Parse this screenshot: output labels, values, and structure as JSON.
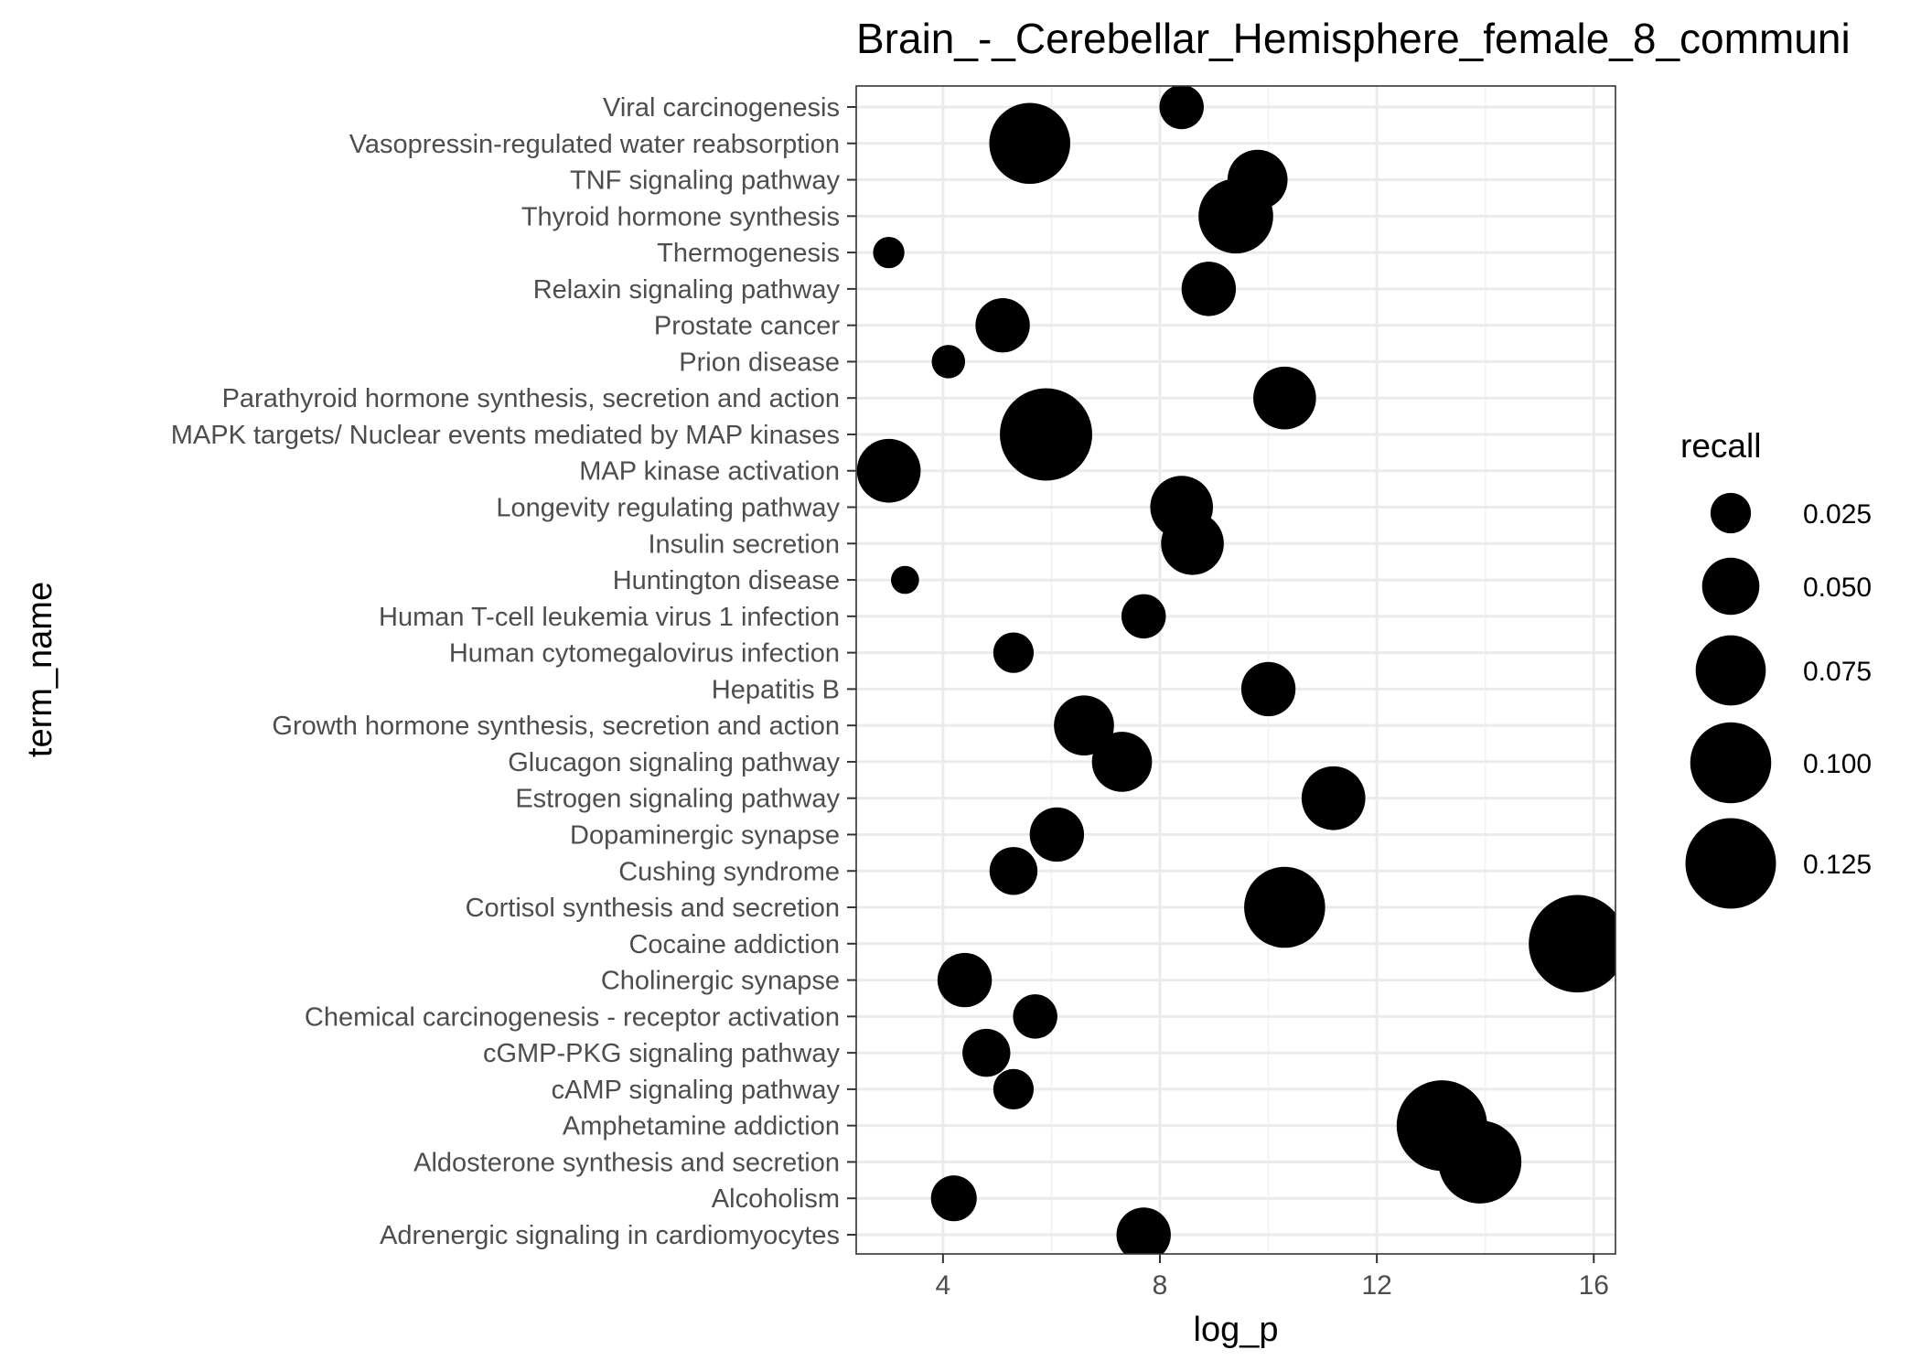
{
  "chart_data": {
    "type": "scatter",
    "title": "Brain_-_Cerebellar_Hemisphere_female_8_communi",
    "xlabel": "log_p",
    "ylabel": "term_name",
    "xlim": [
      2.4,
      16.4
    ],
    "xticks": [
      4,
      8,
      12,
      16
    ],
    "xtick_labels": [
      "4",
      "8",
      "12",
      "16"
    ],
    "grid": true,
    "legend_position": "right",
    "legend": {
      "title": "recall",
      "entries": [
        {
          "label": "0.025",
          "value": 0.025
        },
        {
          "label": "0.050",
          "value": 0.05
        },
        {
          "label": "0.075",
          "value": 0.075
        },
        {
          "label": "0.100",
          "value": 0.1
        },
        {
          "label": "0.125",
          "value": 0.125
        }
      ]
    },
    "points": [
      {
        "term": "Viral carcinogenesis",
        "log_p": 8.4,
        "recall": 0.03
      },
      {
        "term": "Vasopressin-regulated water reabsorption",
        "log_p": 5.6,
        "recall": 0.1
      },
      {
        "term": "TNF signaling pathway",
        "log_p": 9.8,
        "recall": 0.055
      },
      {
        "term": "Thyroid hormone synthesis",
        "log_p": 9.4,
        "recall": 0.085
      },
      {
        "term": "Thermogenesis",
        "log_p": 3.0,
        "recall": 0.015
      },
      {
        "term": "Relaxin signaling pathway",
        "log_p": 8.9,
        "recall": 0.045
      },
      {
        "term": "Prostate cancer",
        "log_p": 5.1,
        "recall": 0.045
      },
      {
        "term": "Prion disease",
        "log_p": 4.1,
        "recall": 0.017
      },
      {
        "term": "Parathyroid hormone synthesis, secretion and action",
        "log_p": 10.3,
        "recall": 0.06
      },
      {
        "term": "MAPK targets/ Nuclear events mediated by MAP kinases",
        "log_p": 5.9,
        "recall": 0.13
      },
      {
        "term": "MAP kinase activation",
        "log_p": 3.0,
        "recall": 0.062
      },
      {
        "term": "Longevity regulating pathway",
        "log_p": 8.4,
        "recall": 0.06
      },
      {
        "term": "Insulin secretion",
        "log_p": 8.6,
        "recall": 0.06
      },
      {
        "term": "Huntington disease",
        "log_p": 3.3,
        "recall": 0.012
      },
      {
        "term": "Human T-cell leukemia virus 1 infection",
        "log_p": 7.7,
        "recall": 0.03
      },
      {
        "term": "Human cytomegalovirus infection",
        "log_p": 5.3,
        "recall": 0.025
      },
      {
        "term": "Hepatitis B",
        "log_p": 10.0,
        "recall": 0.045
      },
      {
        "term": "Growth hormone synthesis, secretion and action",
        "log_p": 6.6,
        "recall": 0.055
      },
      {
        "term": "Glucagon signaling pathway",
        "log_p": 7.3,
        "recall": 0.055
      },
      {
        "term": "Estrogen signaling pathway",
        "log_p": 11.2,
        "recall": 0.062
      },
      {
        "term": "Dopaminergic synapse",
        "log_p": 6.1,
        "recall": 0.045
      },
      {
        "term": "Cushing syndrome",
        "log_p": 5.3,
        "recall": 0.035
      },
      {
        "term": "Cortisol synthesis and secretion",
        "log_p": 10.3,
        "recall": 0.1
      },
      {
        "term": "Cocaine addiction",
        "log_p": 15.7,
        "recall": 0.145
      },
      {
        "term": "Cholinergic synapse",
        "log_p": 4.4,
        "recall": 0.045
      },
      {
        "term": "Chemical carcinogenesis - receptor activation",
        "log_p": 5.7,
        "recall": 0.03
      },
      {
        "term": "cGMP-PKG signaling pathway",
        "log_p": 4.8,
        "recall": 0.035
      },
      {
        "term": "cAMP signaling pathway",
        "log_p": 5.3,
        "recall": 0.025
      },
      {
        "term": "Amphetamine addiction",
        "log_p": 13.2,
        "recall": 0.125
      },
      {
        "term": "Aldosterone synthesis and secretion",
        "log_p": 13.9,
        "recall": 0.105
      },
      {
        "term": "Alcoholism",
        "log_p": 4.2,
        "recall": 0.032
      },
      {
        "term": "Adrenergic signaling in cardiomyocytes",
        "log_p": 7.7,
        "recall": 0.045
      }
    ]
  }
}
